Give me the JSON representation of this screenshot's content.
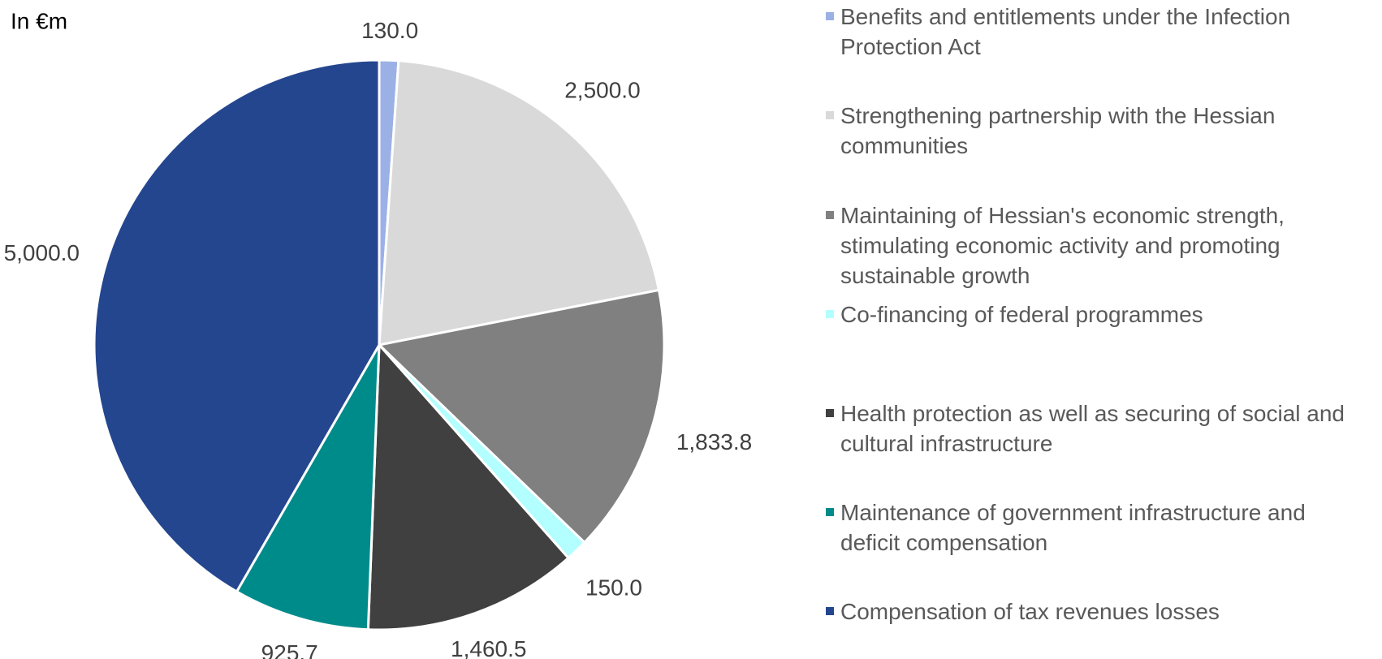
{
  "chart_data": {
    "type": "pie",
    "unit_label": "In €m",
    "categories": [
      "Benefits and entitlements under the Infection Protection Act",
      "Strengthening partnership with the Hessian communities",
      "Maintaining of Hessian's economic strength, stimulating economic activity and promoting sustainable growth",
      "Co-financing of federal programmes",
      "Health protection as well as securing of social and cultural infrastructure",
      "Maintenance of government infrastructure and deficit compensation",
      "Compensation of tax revenues losses"
    ],
    "values": [
      130.0,
      2500.0,
      1833.8,
      150.0,
      1460.5,
      925.7,
      5000.0
    ],
    "value_labels": [
      "130.0",
      "2,500.0",
      "1,833.8",
      "150.0",
      "1,460.5",
      "925.7",
      "5,000.0"
    ],
    "colors": [
      "#9bb1e6",
      "#d9d9d9",
      "#808080",
      "#b3ffff",
      "#404040",
      "#008b8b",
      "#24468f"
    ],
    "legend": "right"
  }
}
